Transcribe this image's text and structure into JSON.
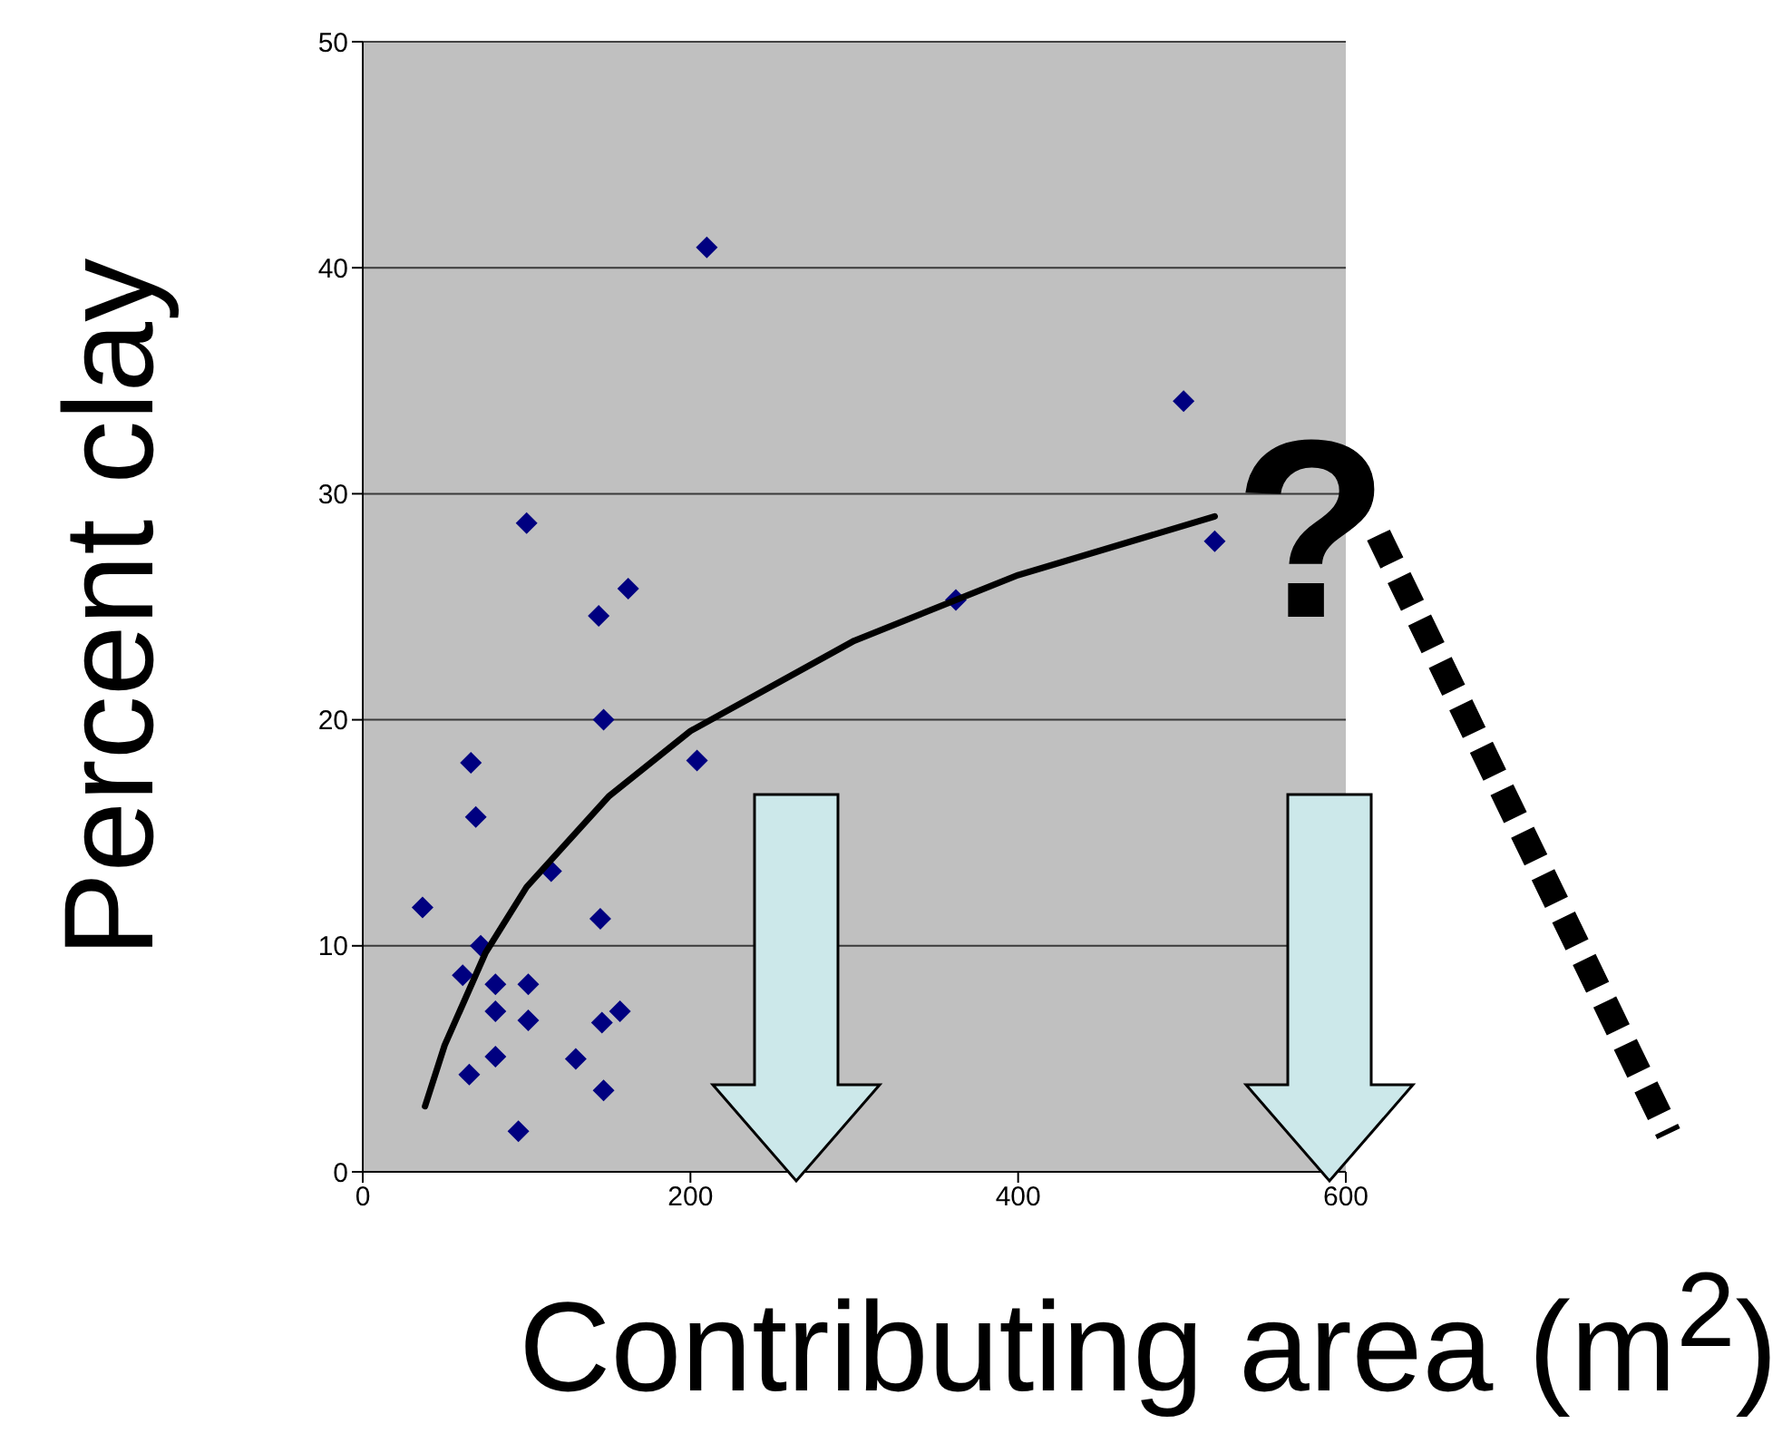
{
  "chart_data": {
    "type": "scatter",
    "xlabel": "Contributing area (m$^{2}$)",
    "ylabel": "Percent clay",
    "annotations": [
      "?"
    ],
    "xlim": [
      0,
      600
    ],
    "xticks": [
      0,
      200,
      400,
      600
    ],
    "ylim": [
      0,
      50
    ],
    "yticks": [
      0,
      10,
      20,
      30,
      40,
      50
    ],
    "grid": "y",
    "marker": "diamond",
    "series": [
      {
        "color": "#000080",
        "x": [
          36.5,
          66,
          69,
          100,
          144,
          162,
          147,
          204,
          115,
          145,
          61,
          72,
          81,
          101,
          81,
          101,
          146,
          157,
          81,
          130,
          65,
          147,
          95,
          210,
          362,
          501,
          520
        ],
        "values": [
          11.7,
          18.1,
          15.7,
          28.7,
          24.6,
          25.8,
          20.0,
          18.2,
          13.3,
          11.2,
          8.7,
          10.0,
          8.3,
          8.3,
          7.1,
          6.7,
          6.6,
          7.1,
          5.1,
          5.0,
          4.3,
          3.6,
          1.8,
          40.9,
          25.3,
          34.1,
          27.9
        ]
      },
      {
        "type": "line",
        "color": "#000000",
        "marker": "none",
        "x": [
          38,
          50,
          75,
          100,
          150,
          200,
          300,
          400,
          520
        ],
        "values": [
          2.9,
          5.6,
          9.7,
          12.6,
          16.6,
          19.5,
          23.5,
          26.4,
          29.0
        ]
      }
    ]
  }
}
